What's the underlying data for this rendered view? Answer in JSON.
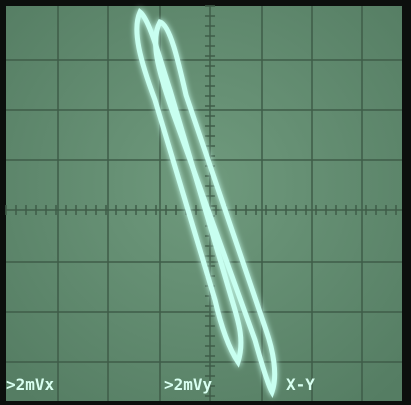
{
  "readouts": {
    "x_scale": ">2mVx",
    "y_scale": ">2mVy",
    "mode": "X-Y"
  }
}
